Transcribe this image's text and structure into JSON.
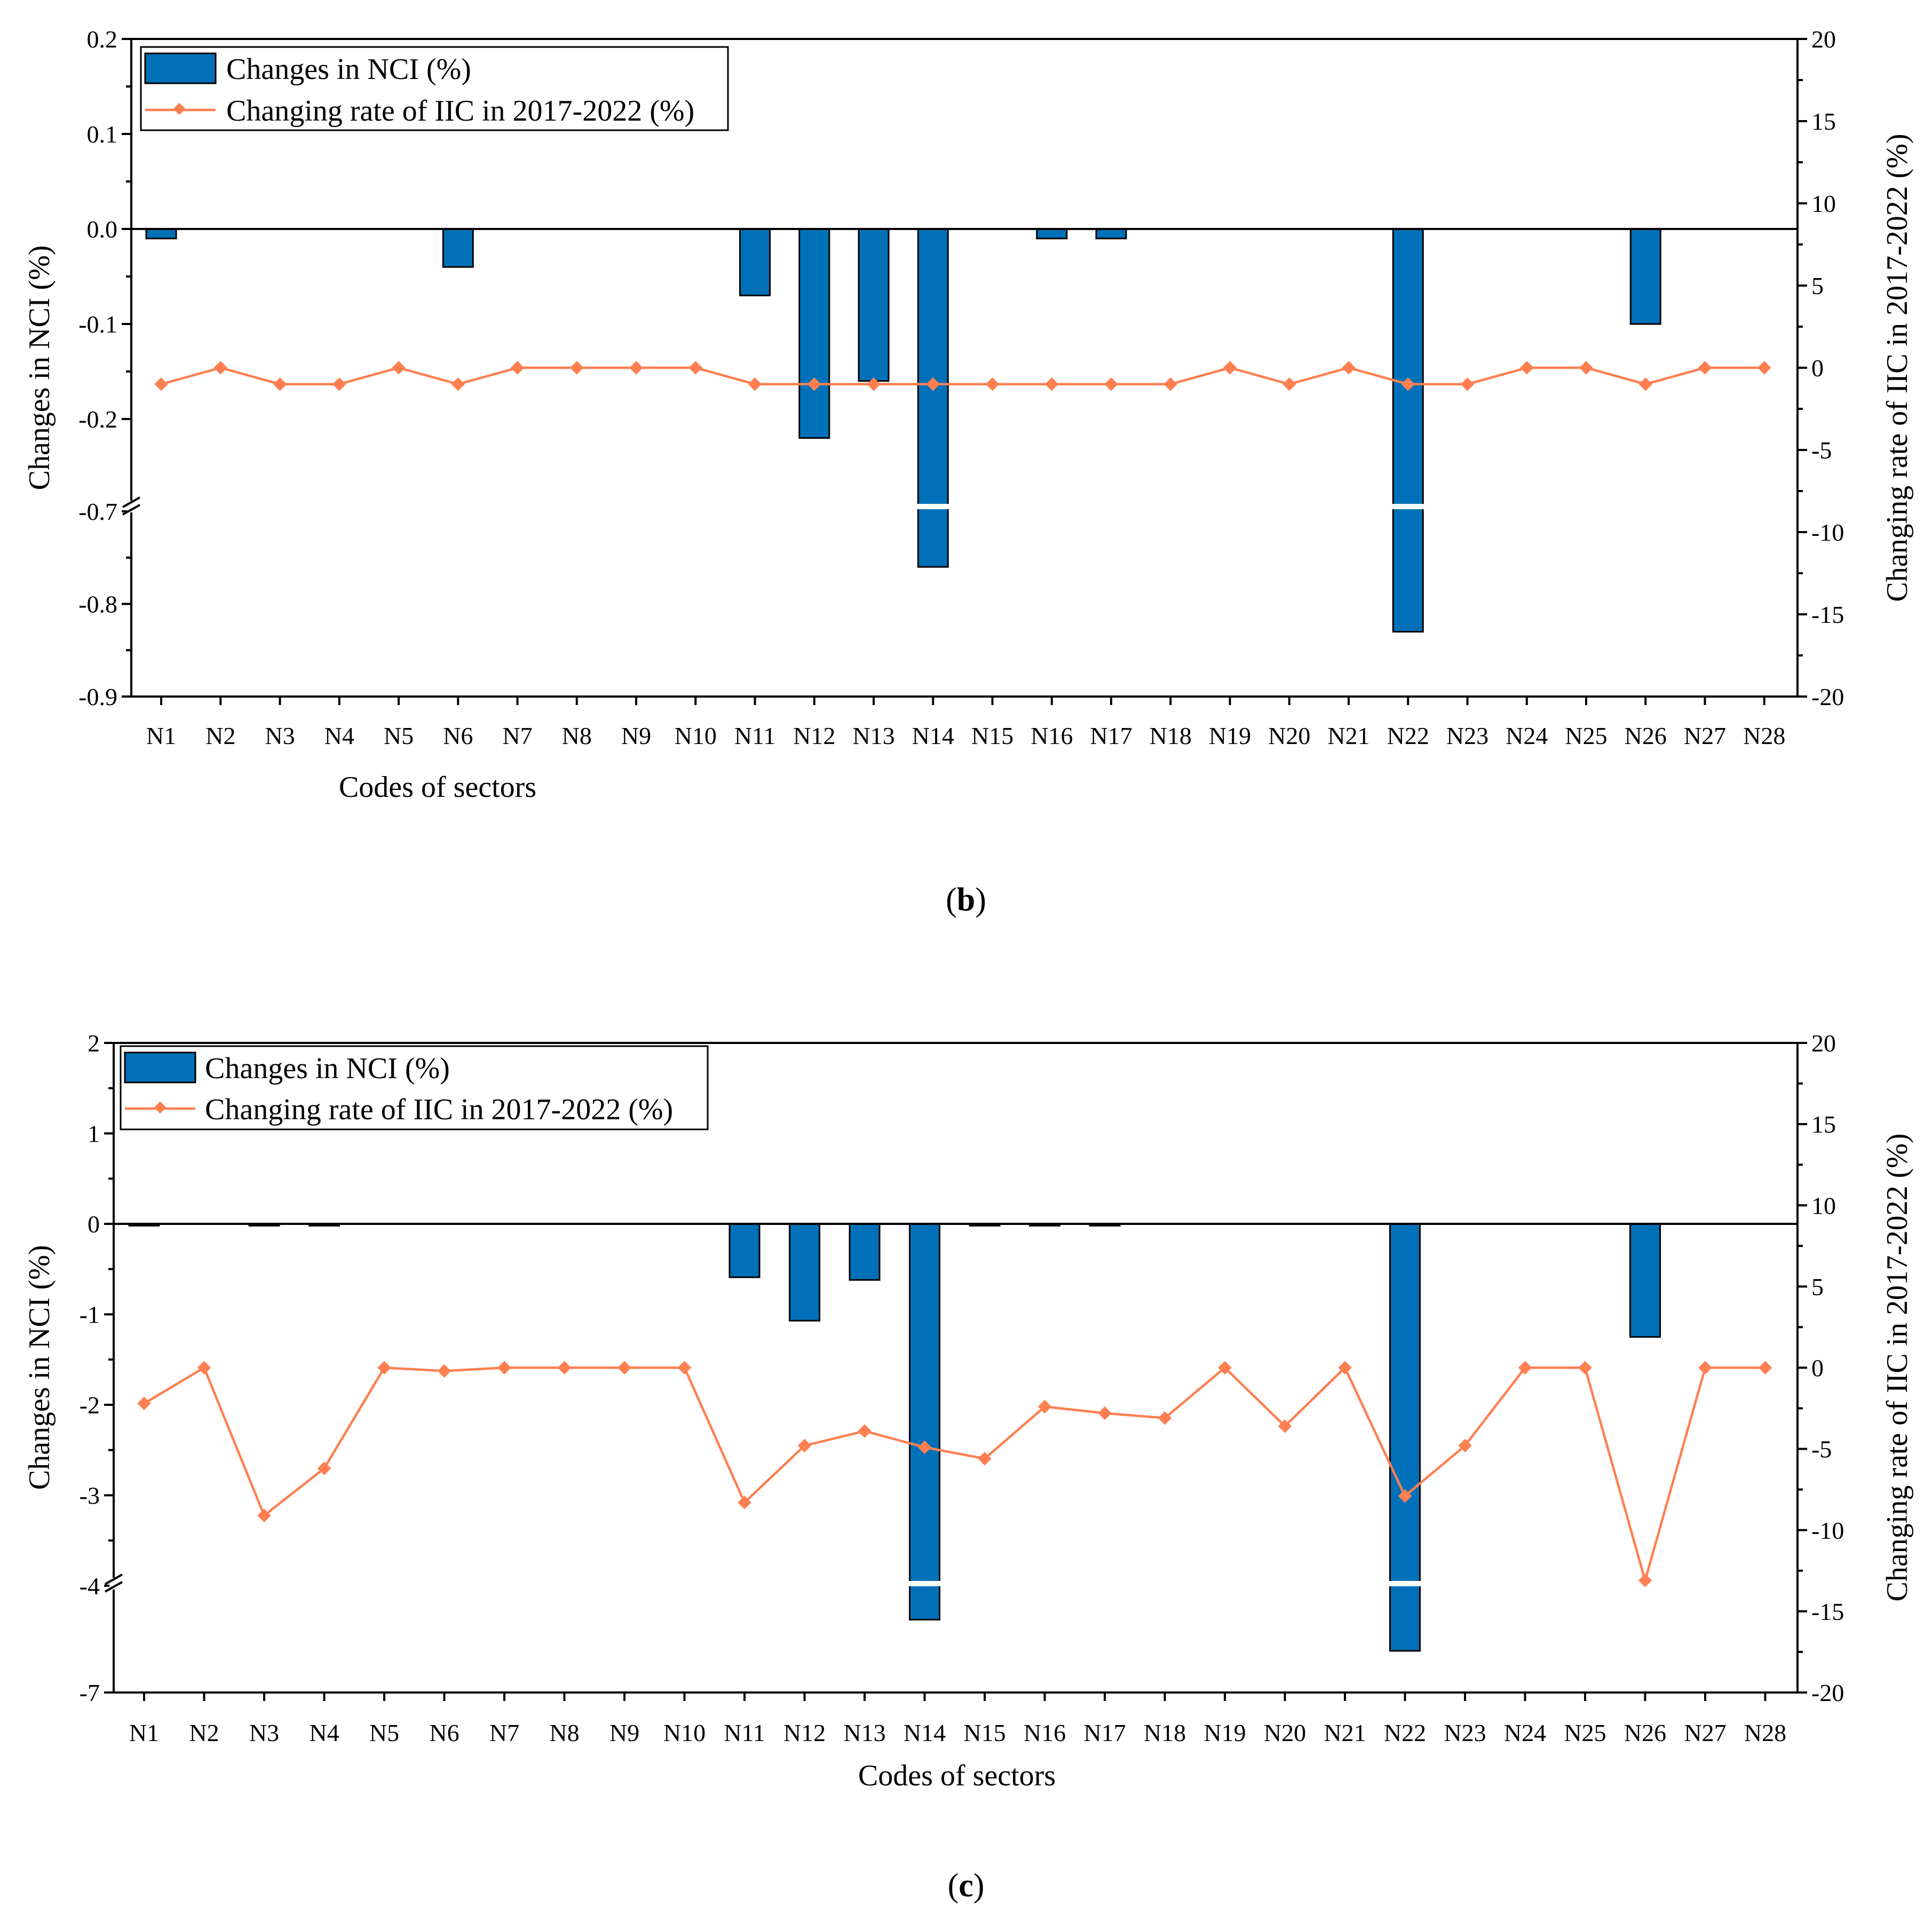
{
  "chart_data": [
    {
      "type": "bar",
      "panel": "b",
      "caption_open": "(",
      "caption_letter": "b",
      "caption_close": ")",
      "categories": [
        "N1",
        "N2",
        "N3",
        "N4",
        "N5",
        "N6",
        "N7",
        "N8",
        "N9",
        "N10",
        "N11",
        "N12",
        "N13",
        "N14",
        "N15",
        "N16",
        "N17",
        "N18",
        "N19",
        "N20",
        "N21",
        "N22",
        "N23",
        "N24",
        "N25",
        "N26",
        "N27",
        "N28"
      ],
      "series": [
        {
          "name": "Changes in NCI (%)",
          "kind": "bar",
          "axis": "left",
          "color": "#0071b8",
          "values": [
            -0.01,
            0,
            0,
            0,
            0,
            -0.04,
            0,
            0,
            0,
            0,
            -0.07,
            -0.22,
            -0.16,
            -0.76,
            0,
            -0.01,
            -0.01,
            0,
            0,
            0,
            0,
            -0.83,
            0,
            0,
            0,
            -0.1,
            0,
            0
          ]
        },
        {
          "name": "Changing rate of IIC in 2017-2022 (%)",
          "kind": "line",
          "axis": "right",
          "color": "#ff7f50",
          "values": [
            -1,
            0,
            -1,
            -1,
            0,
            -1,
            0,
            0,
            0,
            0,
            -1,
            -1,
            -1,
            -1,
            -1,
            -1,
            -1,
            -1,
            0,
            -1,
            0,
            -1,
            -1,
            0,
            0,
            -1,
            0,
            0
          ]
        }
      ],
      "xlabel": "Codes of sectors",
      "ylabel": "Changes in NCI (%)",
      "y2label": "Changing rate of IIC in 2017-2022 (%)",
      "ylim": [
        -0.9,
        0.2
      ],
      "axis_break": [
        -0.3,
        -0.7
      ],
      "yticks": [
        0.2,
        0.1,
        0.0,
        -0.1,
        -0.2,
        -0.7,
        -0.8,
        -0.9
      ],
      "ytick_labels": [
        "0.2",
        "0.1",
        "0.0",
        "-0.1",
        "-0.2",
        "-0.7",
        "-0.8",
        "-0.9"
      ],
      "y2lim": [
        -20,
        20
      ],
      "y2ticks": [
        20,
        15,
        10,
        5,
        0,
        -5,
        -10,
        -15,
        -20
      ],
      "y2tick_labels": [
        "20",
        "15",
        "10",
        "5",
        "0",
        "-5",
        "-10",
        "-15",
        "-20"
      ],
      "legend_position": "top-left"
    },
    {
      "type": "bar",
      "panel": "c",
      "caption_open": "(",
      "caption_letter": "c",
      "caption_close": ")",
      "categories": [
        "N1",
        "N2",
        "N3",
        "N4",
        "N5",
        "N6",
        "N7",
        "N8",
        "N9",
        "N10",
        "N11",
        "N12",
        "N13",
        "N14",
        "N15",
        "N16",
        "N17",
        "N18",
        "N19",
        "N20",
        "N21",
        "N22",
        "N23",
        "N24",
        "N25",
        "N26",
        "N27",
        "N28"
      ],
      "series": [
        {
          "name": "Changes in NCI (%)",
          "kind": "bar",
          "axis": "left",
          "color": "#0071b8",
          "values": [
            -0.02,
            0,
            -0.02,
            -0.02,
            0,
            0,
            0,
            0,
            0,
            0,
            -0.59,
            -1.07,
            -0.62,
            -6.3,
            -0.02,
            -0.02,
            -0.02,
            0,
            0,
            0,
            0,
            -6.6,
            0,
            0,
            0,
            -1.25,
            0,
            0
          ]
        },
        {
          "name": "Changing rate of IIC in 2017-2022 (%)",
          "kind": "line",
          "axis": "right",
          "color": "#ff7f50",
          "values": [
            -2.2,
            0,
            -9.1,
            -6.2,
            0,
            -0.2,
            0,
            0,
            0,
            0,
            -8.3,
            -4.8,
            -3.9,
            -4.9,
            -5.6,
            -2.4,
            -2.8,
            -3.1,
            0,
            -3.6,
            0,
            -7.9,
            -4.8,
            0,
            0,
            -13.1,
            0,
            0
          ]
        }
      ],
      "xlabel": "Codes of sectors",
      "ylabel": "Changes in NCI (%)",
      "y2label": "Changing rate of IIC in 2017-2022 (%)",
      "ylim": [
        -7,
        2
      ],
      "axis_break": [
        -4,
        -6
      ],
      "yticks": [
        2,
        1,
        0,
        -1,
        -2,
        -3,
        -4,
        -7
      ],
      "ytick_labels": [
        "2",
        "1",
        "0",
        "-1",
        "-2",
        "-3",
        "-4",
        "-7"
      ],
      "y2lim": [
        -20,
        20
      ],
      "y2ticks": [
        20,
        15,
        10,
        5,
        0,
        -5,
        -10,
        -15,
        -20
      ],
      "y2tick_labels": [
        "20",
        "15",
        "10",
        "5",
        "0",
        "-5",
        "-10",
        "-15",
        "-20"
      ],
      "legend_position": "top-left"
    }
  ]
}
